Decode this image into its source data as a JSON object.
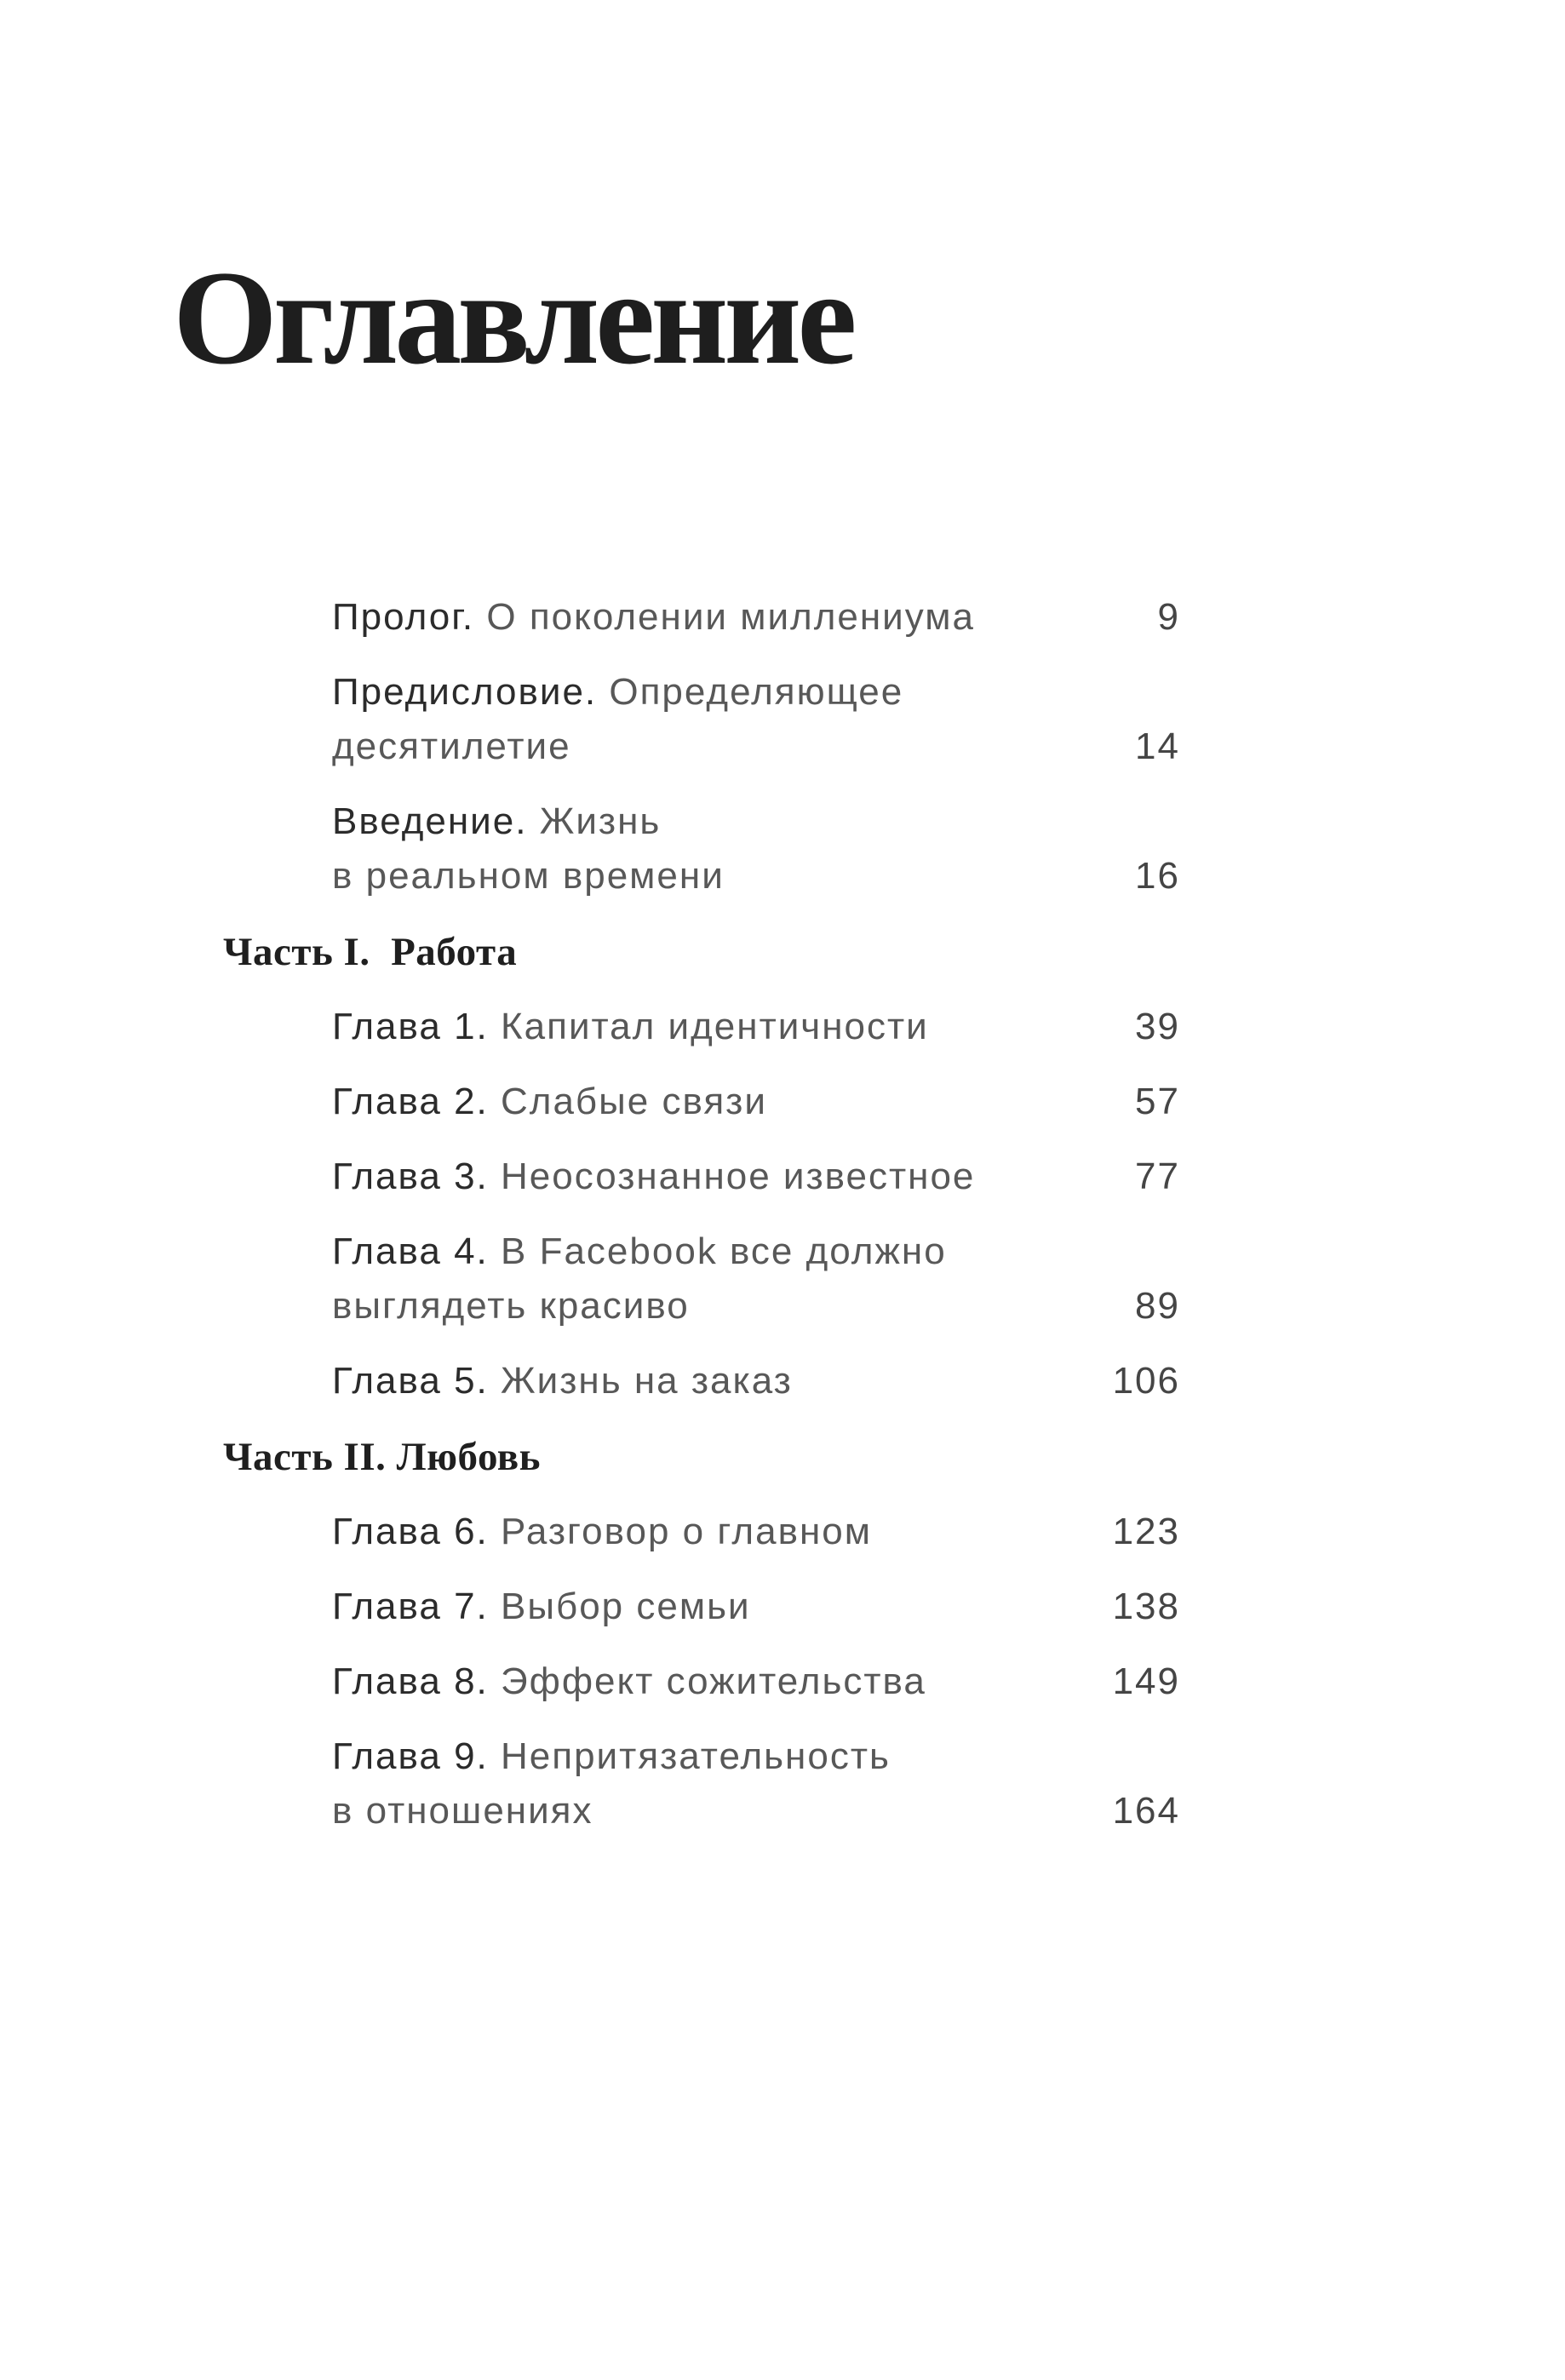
{
  "page": {
    "title": "Оглавление",
    "background_color": "#ffffff",
    "title_color": "#1e1e1e",
    "label_color": "#2b2b2b",
    "description_color": "#585858",
    "page_number_color": "#454545",
    "heading_color": "#1f1f1f"
  },
  "toc": {
    "front_matter": [
      {
        "label": "Пролог.",
        "title": "О поколении миллениума",
        "page": "9"
      },
      {
        "label": "Предисловие.",
        "title": "Определяющее\nдесятилетие",
        "page": "14"
      },
      {
        "label": "Введение.",
        "title": "Жизнь\nв реальном времени",
        "page": "16"
      }
    ],
    "parts": [
      {
        "heading": "Часть I.  Работа",
        "chapters": [
          {
            "label": "Глава 1.",
            "title": "Капитал идентичности",
            "page": "39"
          },
          {
            "label": "Глава 2.",
            "title": "Слабые связи",
            "page": "57"
          },
          {
            "label": "Глава 3.",
            "title": "Неосознанное известное",
            "page": "77"
          },
          {
            "label": "Глава 4.",
            "title": "В Facebook все должно\nвыглядеть красиво",
            "page": "89"
          },
          {
            "label": "Глава 5.",
            "title": "Жизнь на заказ",
            "page": "106"
          }
        ]
      },
      {
        "heading": "Часть II. Любовь",
        "chapters": [
          {
            "label": "Глава 6.",
            "title": "Разговор о главном",
            "page": "123"
          },
          {
            "label": "Глава 7.",
            "title": "Выбор семьи",
            "page": "138"
          },
          {
            "label": "Глава 8.",
            "title": "Эффект сожительства",
            "page": "149"
          },
          {
            "label": "Глава 9.",
            "title": "Непритязательность\nв отношениях",
            "page": "164"
          }
        ]
      }
    ]
  }
}
